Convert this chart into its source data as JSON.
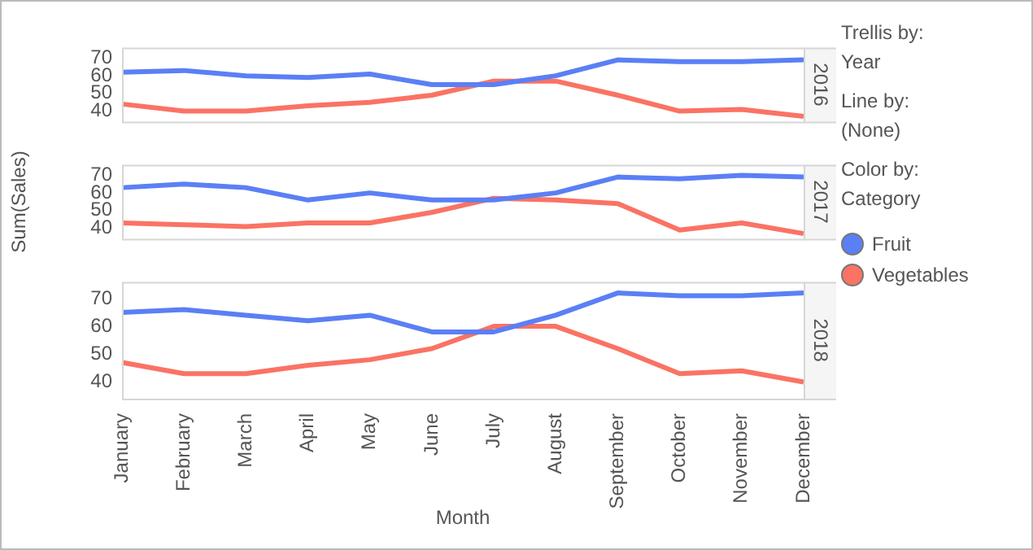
{
  "chart_data": [
    {
      "type": "line",
      "title": "2016",
      "ylim": [
        34,
        76
      ],
      "yticks": [
        40,
        50,
        60,
        70
      ],
      "tick_labels": "y",
      "legend": "right",
      "legend_title": "Category",
      "annotations": [
        "Trellis by:",
        "Year",
        "Line by:",
        "(None)",
        "Color by:"
      ],
      "series": [
        {
          "name": "Fruit",
          "color": "#5b7ff5",
          "values": [
            62,
            63,
            60,
            59,
            61,
            55,
            55,
            60,
            69,
            68,
            68,
            69
          ]
        },
        {
          "name": "Vegetables",
          "color": "#fa7364",
          "values": [
            44,
            40,
            40,
            43,
            45,
            49,
            57,
            57,
            49,
            40,
            41,
            37
          ]
        }
      ]
    },
    {
      "type": "line",
      "title": "2017",
      "ylim": [
        34,
        76
      ],
      "yticks": [
        40,
        50,
        60,
        70
      ],
      "tick_labels": "y",
      "ylabel": "Sum(Sales)",
      "series": [
        {
          "color": "#5b7ff5",
          "values": [
            63,
            65,
            63,
            56,
            60,
            56,
            56,
            60,
            69,
            68,
            70,
            69
          ]
        },
        {
          "color": "#fa7364",
          "values": [
            43,
            42,
            41,
            43,
            43,
            49,
            57,
            56,
            54,
            39,
            43,
            37
          ]
        }
      ]
    },
    {
      "type": "line",
      "title": "2018",
      "categories": [
        "January",
        "February",
        "March",
        "April",
        "May",
        "June",
        "July",
        "August",
        "September",
        "October",
        "November",
        "December"
      ],
      "ylim": [
        34,
        76
      ],
      "yticks": [
        40,
        50,
        60,
        70
      ],
      "xlabel": "Month",
      "series": [
        {
          "color": "#5b7ff5",
          "values": [
            65,
            66,
            64,
            62,
            64,
            58,
            58,
            64,
            72,
            71,
            71,
            72
          ]
        },
        {
          "color": "#fa7364",
          "values": [
            47,
            43,
            43,
            46,
            48,
            52,
            60,
            60,
            52,
            43,
            44,
            40
          ]
        }
      ]
    }
  ]
}
